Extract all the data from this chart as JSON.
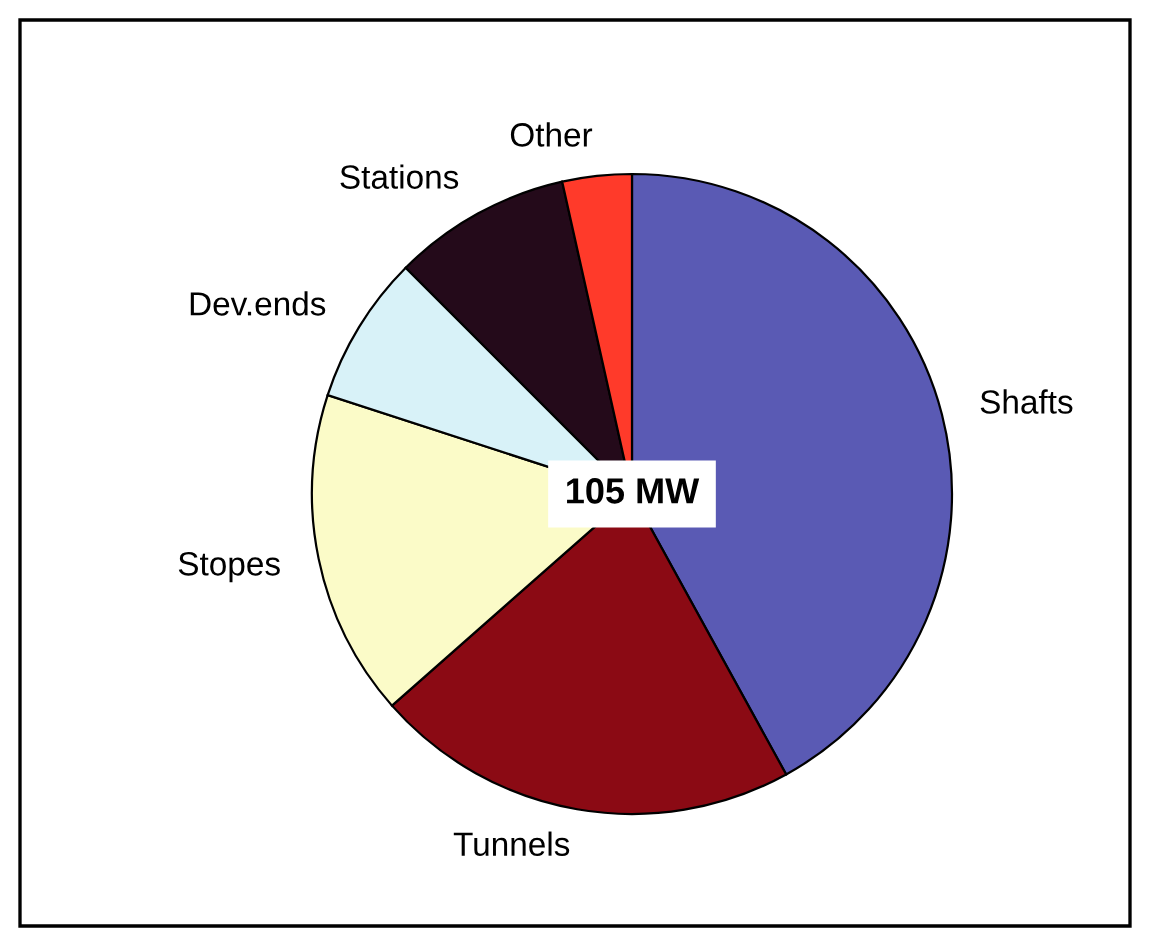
{
  "chart_data": {
    "type": "pie",
    "categories": [
      "Shafts",
      "Tunnels",
      "Stopes",
      "Dev.ends",
      "Stations",
      "Other"
    ],
    "values": [
      42,
      21.5,
      16.5,
      7.5,
      9,
      3.5
    ],
    "colors": [
      "#5a5ab4",
      "#8b0a14",
      "#fbfbc8",
      "#d8f2f8",
      "#240a1a",
      "#ff3a2a"
    ],
    "annotations": [
      "105 MW"
    ]
  }
}
